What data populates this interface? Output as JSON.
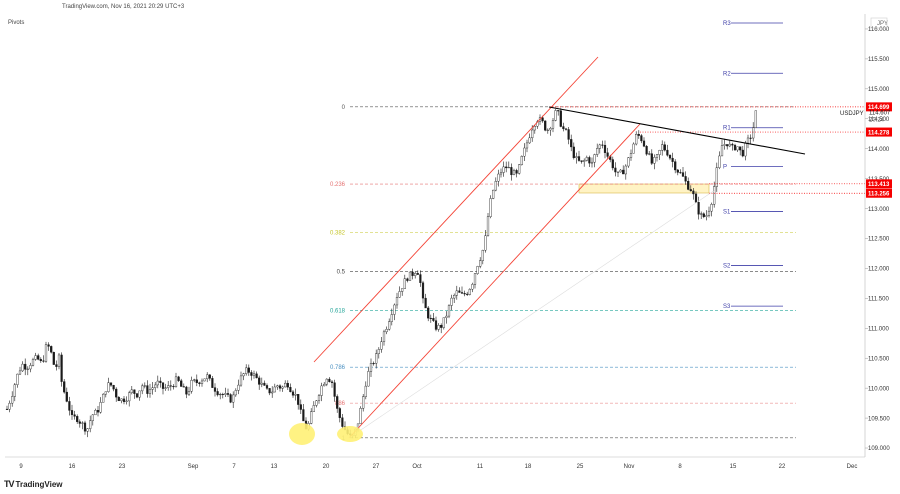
{
  "header": {
    "title": "TradingView.com, Nov 16, 2021 20:29 UTC+3"
  },
  "pivots_label": "Pivots",
  "brand": "TradingView",
  "currency_label": "JPY",
  "symbol": {
    "name": "USDJPY",
    "price": "114.607",
    "time_left": "20:24"
  },
  "colors": {
    "up": "#26a69a",
    "down": "#ef5350",
    "candle": "#1a1a1a",
    "channel": "#f44336",
    "trendline": "#000000",
    "pivot": "#3f3fa8",
    "label_red": "#f50000",
    "zone_fill": "#fff3c4",
    "highlight": "#fff176"
  },
  "pivot_points": [
    {
      "label": "R3",
      "value": 116.1
    },
    {
      "label": "R2",
      "value": 115.26
    },
    {
      "label": "R1",
      "value": 114.35
    },
    {
      "label": "P",
      "value": 113.7
    },
    {
      "label": "S1",
      "value": 112.95
    },
    {
      "label": "S2",
      "value": 112.05
    },
    {
      "label": "S3",
      "value": 111.37
    }
  ],
  "chart_data": {
    "type": "candlestick",
    "symbol": "USDJPY",
    "ylim": [
      108.85,
      116.25
    ],
    "y_ticks": [
      "116.000",
      "115.500",
      "115.000",
      "114.500",
      "114.000",
      "113.500",
      "113.000",
      "112.500",
      "112.000",
      "111.500",
      "111.000",
      "110.500",
      "110.000",
      "109.500",
      "109.000"
    ],
    "x_ticks": [
      "9",
      "16",
      "23",
      "Sep",
      "7",
      "13",
      "20",
      "27",
      "Oct",
      "11",
      "18",
      "25",
      "Nov",
      "8",
      "15",
      "22",
      "Dec"
    ],
    "price_labels": [
      {
        "value": 114.699,
        "text": "114.699"
      },
      {
        "value": 114.278,
        "text": "114.278"
      },
      {
        "value": 113.413,
        "text": "113.413"
      },
      {
        "value": 113.256,
        "text": "113.256"
      }
    ],
    "fibonacci": [
      {
        "level": "0",
        "value": 114.7,
        "color": "#555555"
      },
      {
        "level": "0.236",
        "value": 113.41,
        "color": "#e57373"
      },
      {
        "level": "0.382",
        "value": 112.6,
        "color": "#c6c62a"
      },
      {
        "level": "0.5",
        "value": 111.95,
        "color": "#444444"
      },
      {
        "level": "0.618",
        "value": 111.3,
        "color": "#26a69a"
      },
      {
        "level": "0.786",
        "value": 110.35,
        "color": "#4a90c2"
      },
      {
        "level": "1",
        "value": 109.17,
        "color": "#555555"
      }
    ],
    "fib_886_label": "886",
    "fib_886_value": 109.75,
    "close_path": [
      [
        0,
        109.65
      ],
      [
        5,
        109.9
      ],
      [
        10,
        110.2
      ],
      [
        15,
        110.4
      ],
      [
        20,
        110.35
      ],
      [
        25,
        110.45
      ],
      [
        30,
        110.5
      ],
      [
        35,
        110.4
      ],
      [
        40,
        110.75
      ],
      [
        45,
        110.55
      ],
      [
        48,
        110.3
      ],
      [
        52,
        110.5
      ],
      [
        55,
        110.05
      ],
      [
        60,
        109.8
      ],
      [
        65,
        109.5
      ],
      [
        70,
        109.5
      ],
      [
        75,
        109.4
      ],
      [
        80,
        109.3
      ],
      [
        85,
        109.55
      ],
      [
        90,
        109.6
      ],
      [
        95,
        109.8
      ],
      [
        100,
        110.05
      ],
      [
        105,
        110.05
      ],
      [
        110,
        109.85
      ],
      [
        115,
        109.8
      ],
      [
        120,
        109.85
      ],
      [
        125,
        109.95
      ],
      [
        130,
        109.9
      ],
      [
        135,
        110.05
      ],
      [
        140,
        109.95
      ],
      [
        145,
        110.0
      ],
      [
        150,
        110.1
      ],
      [
        155,
        110.0
      ],
      [
        160,
        110.0
      ],
      [
        165,
        110.05
      ],
      [
        170,
        110.15
      ],
      [
        175,
        110.0
      ],
      [
        180,
        109.9
      ],
      [
        185,
        110.1
      ],
      [
        190,
        110.1
      ],
      [
        195,
        110.15
      ],
      [
        200,
        110.2
      ],
      [
        205,
        110.05
      ],
      [
        210,
        109.95
      ],
      [
        215,
        109.9
      ],
      [
        220,
        109.85
      ],
      [
        225,
        109.8
      ],
      [
        230,
        110.05
      ],
      [
        235,
        110.2
      ],
      [
        240,
        110.3
      ],
      [
        245,
        110.25
      ],
      [
        250,
        110.15
      ],
      [
        255,
        110.05
      ],
      [
        260,
        109.95
      ],
      [
        265,
        109.95
      ],
      [
        270,
        110.05
      ],
      [
        275,
        110.0
      ],
      [
        280,
        110.1
      ],
      [
        285,
        109.95
      ],
      [
        290,
        109.85
      ],
      [
        295,
        109.5
      ],
      [
        300,
        109.3
      ],
      [
        305,
        109.6
      ],
      [
        310,
        109.85
      ],
      [
        315,
        110.05
      ],
      [
        320,
        110.2
      ],
      [
        325,
        110.1
      ],
      [
        330,
        109.65
      ],
      [
        335,
        109.4
      ],
      [
        340,
        109.25
      ],
      [
        345,
        109.15
      ],
      [
        350,
        109.35
      ],
      [
        355,
        109.75
      ],
      [
        360,
        110.2
      ],
      [
        365,
        110.4
      ],
      [
        370,
        110.55
      ],
      [
        375,
        110.85
      ],
      [
        380,
        111.05
      ],
      [
        385,
        111.3
      ],
      [
        390,
        111.55
      ],
      [
        395,
        111.7
      ],
      [
        400,
        111.85
      ],
      [
        405,
        111.9
      ],
      [
        410,
        112.0
      ],
      [
        413,
        111.8
      ],
      [
        416,
        111.45
      ],
      [
        420,
        111.25
      ],
      [
        425,
        111.1
      ],
      [
        430,
        111.0
      ],
      [
        435,
        111.05
      ],
      [
        440,
        111.25
      ],
      [
        445,
        111.5
      ],
      [
        450,
        111.6
      ],
      [
        455,
        111.55
      ],
      [
        460,
        111.6
      ],
      [
        465,
        111.75
      ],
      [
        470,
        112.05
      ],
      [
        475,
        112.25
      ],
      [
        478,
        112.45
      ],
      [
        482,
        113.0
      ],
      [
        486,
        113.3
      ],
      [
        490,
        113.5
      ],
      [
        495,
        113.65
      ],
      [
        500,
        113.7
      ],
      [
        505,
        113.6
      ],
      [
        510,
        113.55
      ],
      [
        515,
        113.85
      ],
      [
        520,
        114.1
      ],
      [
        525,
        114.35
      ],
      [
        530,
        114.5
      ],
      [
        535,
        114.45
      ],
      [
        540,
        114.3
      ],
      [
        545,
        114.45
      ],
      [
        550,
        114.65
      ],
      [
        555,
        114.35
      ],
      [
        560,
        114.25
      ],
      [
        565,
        113.95
      ],
      [
        570,
        113.8
      ],
      [
        575,
        113.75
      ],
      [
        580,
        113.85
      ],
      [
        585,
        113.75
      ],
      [
        590,
        114.0
      ],
      [
        595,
        114.1
      ],
      [
        600,
        113.9
      ],
      [
        605,
        113.75
      ],
      [
        610,
        113.55
      ],
      [
        615,
        113.6
      ],
      [
        620,
        113.75
      ],
      [
        625,
        114.0
      ],
      [
        630,
        114.25
      ],
      [
        635,
        114.15
      ],
      [
        640,
        113.95
      ],
      [
        645,
        113.75
      ],
      [
        650,
        113.85
      ],
      [
        655,
        114.05
      ],
      [
        660,
        113.95
      ],
      [
        665,
        113.8
      ],
      [
        670,
        113.65
      ],
      [
        675,
        113.55
      ],
      [
        680,
        113.4
      ],
      [
        685,
        113.3
      ],
      [
        690,
        113.0
      ],
      [
        695,
        112.85
      ],
      [
        700,
        112.9
      ],
      [
        705,
        113.15
      ],
      [
        710,
        113.65
      ],
      [
        715,
        114.05
      ],
      [
        720,
        114.1
      ],
      [
        725,
        114.0
      ],
      [
        730,
        114.05
      ],
      [
        735,
        113.9
      ],
      [
        740,
        114.1
      ],
      [
        745,
        114.25
      ],
      [
        750,
        114.7
      ]
    ]
  }
}
